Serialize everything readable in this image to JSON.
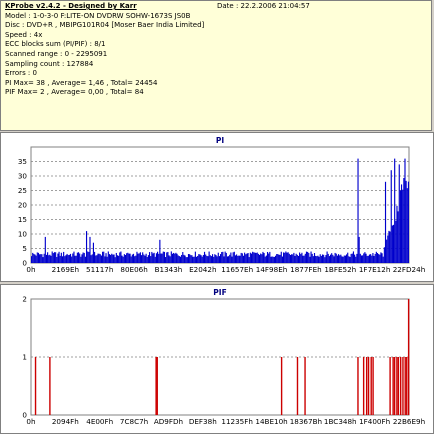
{
  "info": {
    "title": "KProbe v2.4.2 - Designed by Karr",
    "date": "Date : 22.2.2006 21:04:57",
    "lines": [
      "Model : 1-0-3-0 F:LITE-ON DVDRW SOHW-1673S JS0B",
      "Disc : DVD+R , MBIPG101R04 [Moser Baer India Limited]",
      "Speed : 4x",
      "ECC blocks sum (PI/PIF) : 8/1",
      "Scanned range : 0 - 2295091",
      "Sampling count : 127884",
      "Errors : 0",
      "PI Max= 38 , Average= 1,46 , Total= 24454",
      "PIF Max= 2 , Average= 0,00 , Total= 84"
    ]
  },
  "chart_data": [
    {
      "type": "bar",
      "title": "PI",
      "ylim": [
        0,
        40
      ],
      "yticks": [
        0,
        5,
        10,
        15,
        20,
        25,
        30,
        35
      ],
      "grid": true,
      "xtick_labels": [
        "0h",
        "2169Eh",
        "51117h",
        "80E06h",
        "B1343h",
        "E2042h",
        "11657Eh",
        "14F98Eh",
        "1877FEh",
        "1BFE52h",
        "1F7E12h",
        "22FD24h"
      ],
      "color": "#0000cc",
      "baseline_range": [
        2,
        4
      ],
      "peaks": [
        {
          "pos": 0.036,
          "value": 9
        },
        {
          "pos": 0.147,
          "value": 11
        },
        {
          "pos": 0.155,
          "value": 9
        },
        {
          "pos": 0.163,
          "value": 7
        },
        {
          "pos": 0.34,
          "value": 8
        },
        {
          "pos": 0.865,
          "value": 36
        },
        {
          "pos": 0.868,
          "value": 9
        },
        {
          "pos": 0.94,
          "value": 28
        },
        {
          "pos": 0.955,
          "value": 32
        },
        {
          "pos": 0.965,
          "value": 36
        },
        {
          "pos": 0.975,
          "value": 34
        },
        {
          "pos": 0.99,
          "value": 36
        }
      ],
      "ramp": {
        "start": 0.935,
        "from": 5,
        "to": 36
      }
    },
    {
      "type": "bar",
      "title": "PIF",
      "ylim": [
        0,
        2
      ],
      "yticks": [
        0,
        1,
        2
      ],
      "grid": true,
      "xtick_labels": [
        "0h",
        "2094Fh",
        "4E00Fh",
        "7C8C7h",
        "AD9FDh",
        "DEF38h",
        "11235Fh",
        "14BE10h",
        "18367Bh",
        "1BC348h",
        "1F400Fh",
        "22B6E9h"
      ],
      "color": "#cc0000",
      "bars": [
        {
          "pos": 0.012,
          "value": 1
        },
        {
          "pos": 0.05,
          "value": 1
        },
        {
          "pos": 0.331,
          "value": 1
        },
        {
          "pos": 0.334,
          "value": 1
        },
        {
          "pos": 0.663,
          "value": 1
        },
        {
          "pos": 0.705,
          "value": 1
        },
        {
          "pos": 0.725,
          "value": 1
        },
        {
          "pos": 0.865,
          "value": 1
        },
        {
          "pos": 0.88,
          "value": 1
        },
        {
          "pos": 0.888,
          "value": 1
        },
        {
          "pos": 0.893,
          "value": 1
        },
        {
          "pos": 0.9,
          "value": 1
        },
        {
          "pos": 0.905,
          "value": 1
        },
        {
          "pos": 0.95,
          "value": 1
        },
        {
          "pos": 0.958,
          "value": 1
        },
        {
          "pos": 0.962,
          "value": 1
        },
        {
          "pos": 0.968,
          "value": 1
        },
        {
          "pos": 0.972,
          "value": 1
        },
        {
          "pos": 0.978,
          "value": 1
        },
        {
          "pos": 0.984,
          "value": 1
        },
        {
          "pos": 0.99,
          "value": 1
        },
        {
          "pos": 0.994,
          "value": 1
        },
        {
          "pos": 0.999,
          "value": 2
        }
      ]
    }
  ]
}
